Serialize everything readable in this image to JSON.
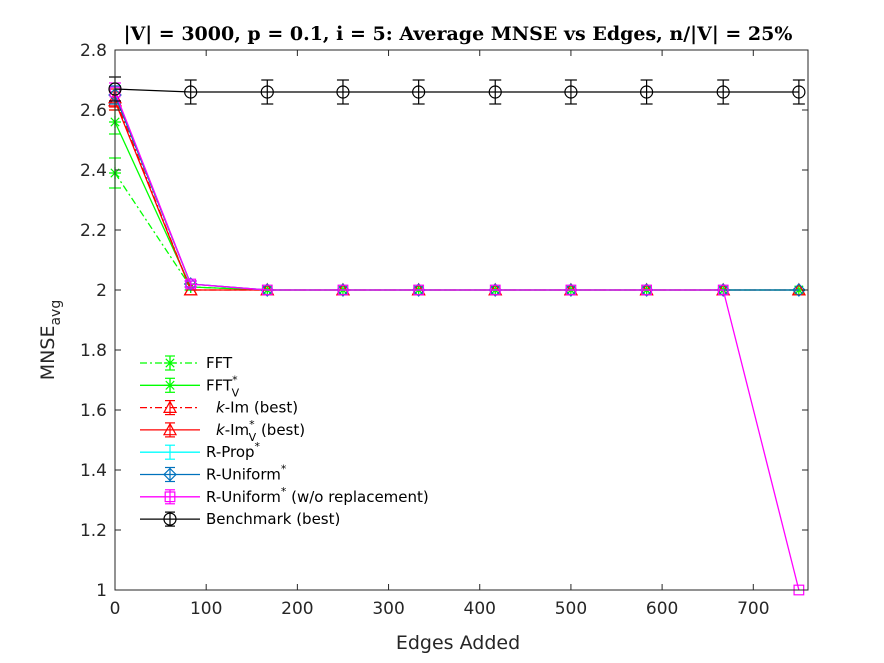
{
  "chart_data": {
    "type": "line",
    "title": "|V| = 3000, p = 0.1, i = 5: Average MNSE vs Edges, n/|V| = 25%",
    "xlabel": "Edges Added",
    "ylabel": "MNSE",
    "ylabel_subscript": "avg",
    "xlim": [
      0,
      760
    ],
    "ylim": [
      1,
      2.8
    ],
    "xticks": [
      0,
      100,
      200,
      300,
      400,
      500,
      600,
      700
    ],
    "yticks": [
      1,
      1.2,
      1.4,
      1.6,
      1.8,
      2,
      2.2,
      2.4,
      2.6,
      2.8
    ],
    "ytick_labels": [
      "1",
      "1.2",
      "1.4",
      "1.6",
      "1.8",
      "2",
      "2.2",
      "2.4",
      "2.6",
      "2.8"
    ],
    "grid": false,
    "legend_position": "lower-left",
    "x": [
      0,
      83,
      167,
      250,
      333,
      417,
      500,
      583,
      667,
      750
    ],
    "series": [
      {
        "name": "FFT",
        "color": "#00ff00",
        "dash": "dashdot",
        "marker": "asterisk",
        "values": [
          2.39,
          2.01,
          2.0,
          2.0,
          2.0,
          2.0,
          2.0,
          2.0,
          2.0,
          2.0
        ],
        "errors": [
          0.05,
          0.01,
          0.0,
          0.0,
          0.0,
          0.0,
          0.0,
          0.0,
          0.0,
          0.0
        ]
      },
      {
        "name": "FFT",
        "name_sup": "*",
        "name_sub": "V",
        "color": "#00ff00",
        "dash": "solid",
        "marker": "asterisk",
        "values": [
          2.56,
          2.01,
          2.0,
          2.0,
          2.0,
          2.0,
          2.0,
          2.0,
          2.0,
          2.0
        ],
        "errors": [
          0.04,
          0.01,
          0.0,
          0.0,
          0.0,
          0.0,
          0.0,
          0.0,
          0.0,
          0.0
        ]
      },
      {
        "name_italic": "k",
        "name": "-Im (best)",
        "color": "#ff0000",
        "dash": "dashdot",
        "marker": "triangle",
        "values": [
          2.64,
          2.0,
          2.0,
          2.0,
          2.0,
          2.0,
          2.0,
          2.0,
          2.0,
          2.0
        ],
        "errors": [
          0.03,
          0.0,
          0.0,
          0.0,
          0.0,
          0.0,
          0.0,
          0.0,
          0.0,
          0.0
        ]
      },
      {
        "name_italic": "k",
        "name": "-Im",
        "name_sup": "*",
        "name_sub": "V",
        "name_after": " (best)",
        "color": "#ff0000",
        "dash": "solid",
        "marker": "triangle",
        "values": [
          2.63,
          2.0,
          2.0,
          2.0,
          2.0,
          2.0,
          2.0,
          2.0,
          2.0,
          2.0
        ],
        "errors": [
          0.03,
          0.0,
          0.0,
          0.0,
          0.0,
          0.0,
          0.0,
          0.0,
          0.0,
          0.0
        ]
      },
      {
        "name": "R-Prop",
        "name_sup": "*",
        "color": "#00ffff",
        "dash": "solid",
        "marker": "none",
        "values": [
          2.65,
          2.02,
          2.0,
          2.0,
          2.0,
          2.0,
          2.0,
          2.0,
          2.0,
          2.0
        ],
        "errors": [
          0.03,
          0.01,
          0.0,
          0.0,
          0.0,
          0.0,
          0.0,
          0.0,
          0.0,
          0.0
        ]
      },
      {
        "name": "R-Uniform",
        "name_sup": "*",
        "color": "#0072bd",
        "dash": "solid",
        "marker": "diamond",
        "values": [
          2.65,
          2.02,
          2.0,
          2.0,
          2.0,
          2.0,
          2.0,
          2.0,
          2.0,
          2.0
        ],
        "errors": [
          0.03,
          0.01,
          0.0,
          0.0,
          0.0,
          0.0,
          0.0,
          0.0,
          0.0,
          0.0
        ]
      },
      {
        "name": "R-Uniform",
        "name_sup": "*",
        "name_after": " (w/o replacement)",
        "color": "#ff00ff",
        "dash": "solid",
        "marker": "square",
        "values": [
          2.66,
          2.02,
          2.0,
          2.0,
          2.0,
          2.0,
          2.0,
          2.0,
          2.0,
          1.0
        ],
        "errors": [
          0.03,
          0.01,
          0.0,
          0.0,
          0.0,
          0.0,
          0.0,
          0.0,
          0.0,
          0.0
        ]
      },
      {
        "name": "Benchmark (best)",
        "color": "#000000",
        "dash": "solid",
        "marker": "circle",
        "values": [
          2.67,
          2.66,
          2.66,
          2.66,
          2.66,
          2.66,
          2.66,
          2.66,
          2.66,
          2.66
        ],
        "errors": [
          0.04,
          0.04,
          0.04,
          0.04,
          0.04,
          0.04,
          0.04,
          0.04,
          0.04,
          0.04
        ]
      }
    ]
  }
}
